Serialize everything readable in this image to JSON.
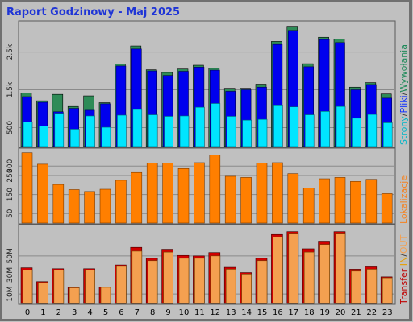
{
  "title": "Raport Godzinowy -  Maj 2025",
  "colors": {
    "background": "#c0c0c0",
    "frame": "#808080",
    "grid": "#8a8a8a",
    "title": "#1f35d6",
    "strony": "#2e8b57",
    "pliki": "#0000ee",
    "wywolania": "#00e5ff",
    "lokalizacje": "#ff7f00",
    "in": "#d00000",
    "out": "#f4a050"
  },
  "labels": {
    "top_right": [
      {
        "text": "Strony",
        "color": "#00b6c8"
      },
      {
        "text": "/",
        "color": "#333333"
      },
      {
        "text": "Pliki",
        "color": "#1030ff"
      },
      {
        "text": "/",
        "color": "#333333"
      },
      {
        "text": "Wywołania",
        "color": "#1e8a5a"
      }
    ],
    "middle_right": [
      {
        "text": "Lokalizacje",
        "color": "#f58220"
      }
    ],
    "bottom_right": [
      {
        "text": "Transfer",
        "color": "#c00000"
      },
      {
        "text": " IN",
        "color": "#e8a000"
      },
      {
        "text": "/",
        "color": "#333333"
      },
      {
        "text": "OUT",
        "color": "#f4a050"
      }
    ]
  },
  "chart_data": [
    {
      "type": "bar",
      "categories": [
        "0",
        "1",
        "2",
        "3",
        "4",
        "5",
        "6",
        "7",
        "8",
        "9",
        "10",
        "11",
        "12",
        "13",
        "14",
        "15",
        "16",
        "17",
        "18",
        "19",
        "20",
        "21",
        "22",
        "23"
      ],
      "series": [
        {
          "name": "Wywołania",
          "values": [
            1420,
            1210,
            1380,
            1060,
            1340,
            1160,
            2180,
            2660,
            2030,
            1960,
            2050,
            2150,
            2070,
            1540,
            1540,
            1650,
            2780,
            3180,
            2190,
            2890,
            2840,
            1570,
            1690,
            1390
          ]
        },
        {
          "name": "Pliki",
          "values": [
            1320,
            1170,
            920,
            1010,
            960,
            1130,
            2130,
            2580,
            2000,
            1880,
            1990,
            2100,
            2020,
            1460,
            1500,
            1570,
            2700,
            3070,
            2110,
            2830,
            2750,
            1500,
            1640,
            1280
          ]
        },
        {
          "name": "Strony",
          "values": [
            650,
            540,
            880,
            460,
            810,
            510,
            830,
            980,
            840,
            800,
            810,
            1040,
            1140,
            800,
            700,
            720,
            1080,
            1050,
            840,
            930,
            1060,
            750,
            850,
            630
          ]
        }
      ],
      "yticks": [
        "500",
        "1.5k",
        "2.5k"
      ],
      "ylim": [
        0,
        3300
      ]
    },
    {
      "type": "bar",
      "categories": [
        "0",
        "1",
        "2",
        "3",
        "4",
        "5",
        "6",
        "7",
        "8",
        "9",
        "10",
        "11",
        "12",
        "13",
        "14",
        "15",
        "16",
        "17",
        "18",
        "19",
        "20",
        "21",
        "22",
        "23"
      ],
      "series": [
        {
          "name": "Lokalizacje",
          "values": [
            370,
            310,
            203,
            176,
            166,
            178,
            225,
            266,
            316,
            316,
            287,
            318,
            358,
            246,
            240,
            316,
            318,
            260,
            185,
            233,
            240,
            219,
            230,
            155
          ]
        }
      ],
      "yticks": [
        "50",
        "150",
        "250",
        "300"
      ],
      "ylim": [
        0,
        390
      ]
    },
    {
      "type": "bar",
      "categories": [
        "0",
        "1",
        "2",
        "3",
        "4",
        "5",
        "6",
        "7",
        "8",
        "9",
        "10",
        "11",
        "12",
        "13",
        "14",
        "15",
        "16",
        "17",
        "18",
        "19",
        "20",
        "21",
        "22",
        "23"
      ],
      "series": [
        {
          "name": "IN",
          "values": [
            37.5,
            23.0,
            36.5,
            17.5,
            36.5,
            17.5,
            40.5,
            59.0,
            47.5,
            57.0,
            50.5,
            50.0,
            53.5,
            38.0,
            32.5,
            47.5,
            72.5,
            75.5,
            57.5,
            65.5,
            75.5,
            36.0,
            38.5,
            28.0
          ]
        },
        {
          "name": "OUT",
          "values": [
            35.0,
            22.0,
            35.0,
            16.5,
            35.0,
            17.0,
            39.0,
            55.0,
            45.0,
            54.0,
            47.5,
            47.5,
            50.0,
            36.0,
            31.0,
            45.0,
            70.0,
            73.0,
            54.0,
            62.0,
            73.0,
            34.0,
            36.0,
            27.0
          ]
        }
      ],
      "yticks": [
        "10M",
        "30M",
        "50M"
      ],
      "ylim": [
        0,
        82
      ]
    }
  ]
}
